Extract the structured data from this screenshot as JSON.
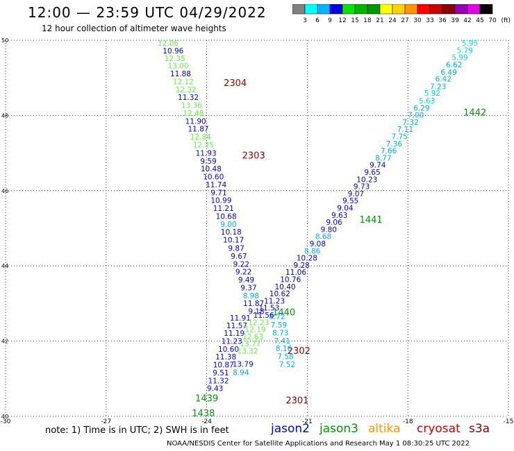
{
  "header": {
    "title": "12:00 — 23:59 UTC 04/29/2022",
    "subtitle": "12 hour collection of altimeter wave heights"
  },
  "colorbar": {
    "unit": "(ft)",
    "bins": [
      {
        "label": "3",
        "color": "#808080"
      },
      {
        "label": "6",
        "color": "#00ffff"
      },
      {
        "label": "9",
        "color": "#00b4ff"
      },
      {
        "label": "12",
        "color": "#0000e6"
      },
      {
        "label": "15",
        "color": "#00e600"
      },
      {
        "label": "18",
        "color": "#00b400"
      },
      {
        "label": "21",
        "color": "#009600"
      },
      {
        "label": "24",
        "color": "#ffff00"
      },
      {
        "label": "27",
        "color": "#ffd200"
      },
      {
        "label": "30",
        "color": "#ff9600"
      },
      {
        "label": "33",
        "color": "#ff0000"
      },
      {
        "label": "36",
        "color": "#c80000"
      },
      {
        "label": "39",
        "color": "#8b0000"
      },
      {
        "label": "42",
        "color": "#9600b4"
      },
      {
        "label": "45",
        "color": "#e600e6"
      },
      {
        "label": "70",
        "color": "#000000"
      }
    ]
  },
  "map": {
    "lon_ticks": [
      "-30",
      "-27",
      "-24",
      "-21",
      "-18",
      "-15"
    ],
    "lat_ticks": [
      "40",
      "42",
      "44",
      "46",
      "48",
      "50"
    ],
    "lon_range": [
      -30,
      -15
    ],
    "lat_range": [
      40,
      50
    ]
  },
  "colors": {
    "jason2": "#0000e6",
    "jason3": "#009600",
    "altika": "#ff9600",
    "cryosat": "#c80000",
    "s3a": "#8b0000",
    "pass_label": "#009600",
    "pass_label_s3a": "#8b0000"
  },
  "tracks": [
    {
      "pass": "2304",
      "label_color": "#8b0000",
      "points": [
        {
          "lon": -25.15,
          "lat": 49.85,
          "swh": "12.06",
          "color": "#66ee44"
        },
        {
          "lon": -25.0,
          "lat": 49.65,
          "swh": "10.96",
          "color": "#0000cc"
        },
        {
          "lon": -24.95,
          "lat": 49.45,
          "swh": "12.35",
          "color": "#66ee44"
        },
        {
          "lon": -24.85,
          "lat": 49.25,
          "swh": "13.00",
          "color": "#66ee44"
        },
        {
          "lon": -24.78,
          "lat": 49.04,
          "swh": "11.88",
          "color": "#0000cc"
        },
        {
          "lon": -24.7,
          "lat": 48.83,
          "swh": "12.12",
          "color": "#66ee44"
        },
        {
          "lon": -24.62,
          "lat": 48.62,
          "swh": "12.32",
          "color": "#66ee44"
        },
        {
          "lon": -24.55,
          "lat": 48.41,
          "swh": "11.32",
          "color": "#0000cc"
        },
        {
          "lon": -24.45,
          "lat": 48.2,
          "swh": "13.36",
          "color": "#66ee44"
        },
        {
          "lon": -24.4,
          "lat": 47.99,
          "swh": "12.48",
          "color": "#66ee44"
        },
        {
          "lon": -24.33,
          "lat": 47.78,
          "swh": "11.90",
          "color": "#0000cc"
        },
        {
          "lon": -24.25,
          "lat": 47.57,
          "swh": "11.87",
          "color": "#0000cc"
        },
        {
          "lon": -24.18,
          "lat": 47.36,
          "swh": "12.84",
          "color": "#66ee44"
        },
        {
          "lon": -24.1,
          "lat": 47.15,
          "swh": "12.35",
          "color": "#66ee44"
        },
        {
          "lon": -24.02,
          "lat": 46.93,
          "swh": "11.93",
          "color": "#0000cc"
        },
        {
          "lon": -23.95,
          "lat": 46.72,
          "swh": "9.59",
          "color": "#0000cc"
        },
        {
          "lon": -23.87,
          "lat": 46.51,
          "swh": "10.48",
          "color": "#0000cc"
        },
        {
          "lon": -23.8,
          "lat": 46.3,
          "swh": "10.60",
          "color": "#0000cc"
        },
        {
          "lon": -23.72,
          "lat": 46.09,
          "swh": "11.74",
          "color": "#0000cc"
        },
        {
          "lon": -23.64,
          "lat": 45.88,
          "swh": "9.71",
          "color": "#0000cc"
        },
        {
          "lon": -23.57,
          "lat": 45.67,
          "swh": "10.99",
          "color": "#0000cc"
        },
        {
          "lon": -23.5,
          "lat": 45.46,
          "swh": "11.21",
          "color": "#0000cc"
        },
        {
          "lon": -23.42,
          "lat": 45.25,
          "swh": "10.68",
          "color": "#0000cc"
        },
        {
          "lon": -23.35,
          "lat": 45.04,
          "swh": "9.00",
          "color": "#00aaee"
        },
        {
          "lon": -23.27,
          "lat": 44.83,
          "swh": "10.18",
          "color": "#0000cc"
        },
        {
          "lon": -23.2,
          "lat": 44.62,
          "swh": "10.17",
          "color": "#0000cc"
        },
        {
          "lon": -23.12,
          "lat": 44.4,
          "swh": "9.87",
          "color": "#0000cc"
        },
        {
          "lon": -23.04,
          "lat": 44.19,
          "swh": "9.67",
          "color": "#0000cc"
        },
        {
          "lon": -22.97,
          "lat": 43.98,
          "swh": "9.22",
          "color": "#0000cc"
        },
        {
          "lon": -22.9,
          "lat": 43.77,
          "swh": "9.22",
          "color": "#0000cc"
        },
        {
          "lon": -22.82,
          "lat": 43.56,
          "swh": "9.49",
          "color": "#0000cc"
        },
        {
          "lon": -22.75,
          "lat": 43.35,
          "swh": "9.37",
          "color": "#0000cc"
        },
        {
          "lon": -22.68,
          "lat": 43.14,
          "swh": "8.98",
          "color": "#00aaee"
        },
        {
          "lon": -22.6,
          "lat": 42.93,
          "swh": "11.87",
          "color": "#0000cc"
        },
        {
          "lon": -22.52,
          "lat": 42.72,
          "swh": "9.18",
          "color": "#0000cc"
        }
      ],
      "label_lon": -23.15,
      "label_lat": 48.78
    },
    {
      "pass": "2303",
      "label_color": "#8b0000",
      "points": [],
      "label_lon": -22.6,
      "label_lat": 46.85
    },
    {
      "pass": "2302",
      "label_color": "#8b0000",
      "points": [
        {
          "lon": -23.0,
          "lat": 42.55,
          "swh": "11.91",
          "color": "#0000cc"
        },
        {
          "lon": -23.1,
          "lat": 42.34,
          "swh": "11.57",
          "color": "#0000cc"
        },
        {
          "lon": -23.18,
          "lat": 42.14,
          "swh": "11.19",
          "color": "#0000cc"
        },
        {
          "lon": -23.25,
          "lat": 41.93,
          "swh": "11.23",
          "color": "#0000cc"
        },
        {
          "lon": -23.35,
          "lat": 41.72,
          "swh": "10.60",
          "color": "#0000cc"
        },
        {
          "lon": -23.43,
          "lat": 41.51,
          "swh": "11.38",
          "color": "#0000cc"
        },
        {
          "lon": -23.5,
          "lat": 41.3,
          "swh": "10.87",
          "color": "#0000cc"
        },
        {
          "lon": -23.58,
          "lat": 41.09,
          "swh": "9.51",
          "color": "#0000cc"
        },
        {
          "lon": -23.65,
          "lat": 40.88,
          "swh": "11.32",
          "color": "#0000cc"
        },
        {
          "lon": -23.75,
          "lat": 40.67,
          "swh": "9.43",
          "color": "#0000cc"
        }
      ],
      "label_lon": -21.25,
      "label_lat": 41.66
    },
    {
      "pass": "2301",
      "label_color": "#8b0000",
      "points": [
        {
          "lon": -21.9,
          "lat": 42.58,
          "swh": "8.72",
          "color": "#00aaee"
        },
        {
          "lon": -21.85,
          "lat": 42.36,
          "swh": "7.59",
          "color": "#00aaee"
        },
        {
          "lon": -21.8,
          "lat": 42.15,
          "swh": "8.73",
          "color": "#00aaee"
        },
        {
          "lon": -21.75,
          "lat": 41.94,
          "swh": "7.41",
          "color": "#00aaee"
        },
        {
          "lon": -21.7,
          "lat": 41.73,
          "swh": "8.16",
          "color": "#00aaee"
        },
        {
          "lon": -21.65,
          "lat": 41.52,
          "swh": "7.58",
          "color": "#00aaee"
        },
        {
          "lon": -21.6,
          "lat": 41.31,
          "swh": "7.52",
          "color": "#00aaee"
        }
      ],
      "label_lon": -21.3,
      "label_lat": 40.34
    },
    {
      "pass": "1442",
      "label_color": "#009600",
      "points": [
        {
          "lon": -16.15,
          "lat": 49.85,
          "swh": "5.95",
          "color": "#00dddd"
        },
        {
          "lon": -16.3,
          "lat": 49.66,
          "swh": "5.79",
          "color": "#00dddd"
        },
        {
          "lon": -16.45,
          "lat": 49.47,
          "swh": "5.99",
          "color": "#00dddd"
        },
        {
          "lon": -16.62,
          "lat": 49.28,
          "swh": "6.62",
          "color": "#00aaee"
        },
        {
          "lon": -16.78,
          "lat": 49.08,
          "swh": "6.49",
          "color": "#00aaee"
        },
        {
          "lon": -16.94,
          "lat": 48.9,
          "swh": "6.42",
          "color": "#00aaee"
        },
        {
          "lon": -17.1,
          "lat": 48.7,
          "swh": "7.23",
          "color": "#00aaee"
        },
        {
          "lon": -17.27,
          "lat": 48.52,
          "swh": "5.92",
          "color": "#00dddd"
        },
        {
          "lon": -17.43,
          "lat": 48.32,
          "swh": "5.63",
          "color": "#00dddd"
        },
        {
          "lon": -17.59,
          "lat": 48.13,
          "swh": "6.29",
          "color": "#00aaee"
        },
        {
          "lon": -17.76,
          "lat": 47.94,
          "swh": "7.00",
          "color": "#00aaee"
        },
        {
          "lon": -17.92,
          "lat": 47.75,
          "swh": "7.32",
          "color": "#00aaee"
        },
        {
          "lon": -18.08,
          "lat": 47.56,
          "swh": "7.11",
          "color": "#00aaee"
        },
        {
          "lon": -18.25,
          "lat": 47.37,
          "swh": "7.75",
          "color": "#00aaee"
        },
        {
          "lon": -18.41,
          "lat": 47.18,
          "swh": "7.36",
          "color": "#00aaee"
        },
        {
          "lon": -18.57,
          "lat": 46.99,
          "swh": "7.66",
          "color": "#00aaee"
        },
        {
          "lon": -18.73,
          "lat": 46.8,
          "swh": "8.77",
          "color": "#00aaee"
        },
        {
          "lon": -18.9,
          "lat": 46.61,
          "swh": "9.74",
          "color": "#0000cc"
        },
        {
          "lon": -19.06,
          "lat": 46.42,
          "swh": "9.65",
          "color": "#0000cc"
        },
        {
          "lon": -19.22,
          "lat": 46.23,
          "swh": "10.23",
          "color": "#0000cc"
        },
        {
          "lon": -19.38,
          "lat": 46.04,
          "swh": "9.73",
          "color": "#0000cc"
        },
        {
          "lon": -19.55,
          "lat": 45.85,
          "swh": "9.07",
          "color": "#0000cc"
        },
        {
          "lon": -19.71,
          "lat": 45.66,
          "swh": "9.55",
          "color": "#0000cc"
        },
        {
          "lon": -19.87,
          "lat": 45.47,
          "swh": "9.04",
          "color": "#0000cc"
        },
        {
          "lon": -20.04,
          "lat": 45.28,
          "swh": "9.63",
          "color": "#0000cc"
        },
        {
          "lon": -20.2,
          "lat": 45.09,
          "swh": "9.06",
          "color": "#0000cc"
        },
        {
          "lon": -20.36,
          "lat": 44.9,
          "swh": "9.80",
          "color": "#0000cc"
        },
        {
          "lon": -20.52,
          "lat": 44.71,
          "swh": "8.68",
          "color": "#00aaee"
        },
        {
          "lon": -20.69,
          "lat": 44.52,
          "swh": "9.08",
          "color": "#0000cc"
        },
        {
          "lon": -20.85,
          "lat": 44.33,
          "swh": "8.86",
          "color": "#00aaee"
        },
        {
          "lon": -21.01,
          "lat": 44.14,
          "swh": "10.28",
          "color": "#0000cc"
        },
        {
          "lon": -21.17,
          "lat": 43.95,
          "swh": "9.28",
          "color": "#0000cc"
        },
        {
          "lon": -21.34,
          "lat": 43.76,
          "swh": "11.06",
          "color": "#0000cc"
        },
        {
          "lon": -21.5,
          "lat": 43.57,
          "swh": "10.76",
          "color": "#0000cc"
        },
        {
          "lon": -21.66,
          "lat": 43.38,
          "swh": "10.40",
          "color": "#0000cc"
        },
        {
          "lon": -21.82,
          "lat": 43.19,
          "swh": "10.62",
          "color": "#0000cc"
        },
        {
          "lon": -21.98,
          "lat": 43.0,
          "swh": "11.23",
          "color": "#0000cc"
        },
        {
          "lon": -22.14,
          "lat": 42.81,
          "swh": "11.53",
          "color": "#0000cc"
        },
        {
          "lon": -22.3,
          "lat": 42.62,
          "swh": "11.56",
          "color": "#0000cc"
        },
        {
          "lon": -22.45,
          "lat": 42.43,
          "swh": "12.23",
          "color": "#66ee44"
        },
        {
          "lon": -22.55,
          "lat": 42.24,
          "swh": "12.19",
          "color": "#66ee44"
        },
        {
          "lon": -22.62,
          "lat": 42.05,
          "swh": "12.63",
          "color": "#66ee44"
        },
        {
          "lon": -22.7,
          "lat": 41.86,
          "swh": "13.77",
          "color": "#66ee44"
        },
        {
          "lon": -22.78,
          "lat": 41.67,
          "swh": "13.32",
          "color": "#66ee44"
        },
        {
          "lon": -22.92,
          "lat": 41.32,
          "swh": "13.79",
          "color": "#0000cc"
        },
        {
          "lon": -22.98,
          "lat": 41.1,
          "swh": "8.94",
          "color": "#00aaee"
        }
      ],
      "label_lon": -16.0,
      "label_lat": 48.0
    },
    {
      "pass": "1441",
      "label_color": "#009600",
      "points": [],
      "label_lon": -19.1,
      "label_lat": 45.15
    },
    {
      "pass": "1440",
      "label_color": "#009600",
      "points": [],
      "label_lon": -21.7,
      "label_lat": 42.68
    },
    {
      "pass": "1439",
      "label_color": "#009600",
      "points": [],
      "label_lon": -24.0,
      "label_lat": 40.4
    },
    {
      "pass": "1438",
      "label_color": "#009600",
      "points": [],
      "label_lon": -24.1,
      "label_lat": 40.0
    }
  ],
  "footer": {
    "note": "note:  1) Time is in UTC; 2) SWH is in feet",
    "satellites": [
      {
        "name": "jason2",
        "color": "#0000e6"
      },
      {
        "name": "jason3",
        "color": "#009600"
      },
      {
        "name": "altika",
        "color": "#ff9600"
      },
      {
        "name": "cryosat",
        "color": "#c80000"
      },
      {
        "name": "s3a",
        "color": "#8b0000"
      }
    ],
    "credit": "NOAA/NESDIS Center for Satellite Applications and Research    May  1 08:30:25 UTC 2022"
  }
}
